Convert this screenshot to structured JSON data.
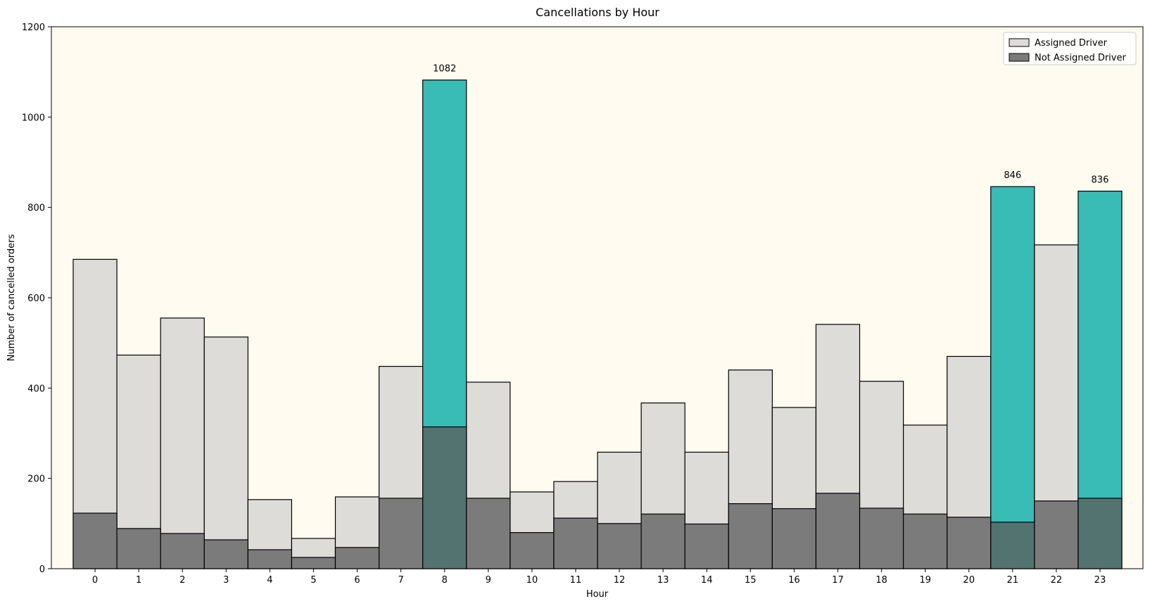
{
  "chart_data": {
    "type": "bar",
    "title": "Cancellations by Hour",
    "xlabel": "Hour",
    "ylabel": "Number of cancelled orders",
    "ylim": [
      0,
      1200
    ],
    "yticks": [
      0,
      200,
      400,
      600,
      800,
      1000,
      1200
    ],
    "categories": [
      "0",
      "1",
      "2",
      "3",
      "4",
      "5",
      "6",
      "7",
      "8",
      "9",
      "10",
      "11",
      "12",
      "13",
      "14",
      "15",
      "16",
      "17",
      "18",
      "19",
      "20",
      "21",
      "22",
      "23"
    ],
    "series": [
      {
        "name": "Assigned Driver",
        "color": "#dedcd8",
        "highlight_color": "#38bcb5",
        "values": [
          685,
          473,
          555,
          513,
          153,
          67,
          159,
          448,
          1082,
          413,
          170,
          193,
          258,
          367,
          258,
          440,
          357,
          541,
          415,
          318,
          470,
          846,
          717,
          836
        ]
      },
      {
        "name": "Not Assigned Driver",
        "color": "#7b7b7b",
        "highlight_color": "#527370",
        "values": [
          123,
          89,
          78,
          64,
          42,
          25,
          47,
          156,
          314,
          156,
          80,
          112,
          100,
          121,
          99,
          144,
          133,
          167,
          134,
          121,
          114,
          103,
          150,
          156
        ]
      }
    ],
    "highlight_categories": [
      "8",
      "21",
      "23"
    ],
    "data_labels": [
      {
        "category": "8",
        "text": "1082"
      },
      {
        "category": "21",
        "text": "846"
      },
      {
        "category": "23",
        "text": "836"
      }
    ],
    "legend_position": "top-right",
    "plot_background": "#fffbf0",
    "grid": false
  }
}
